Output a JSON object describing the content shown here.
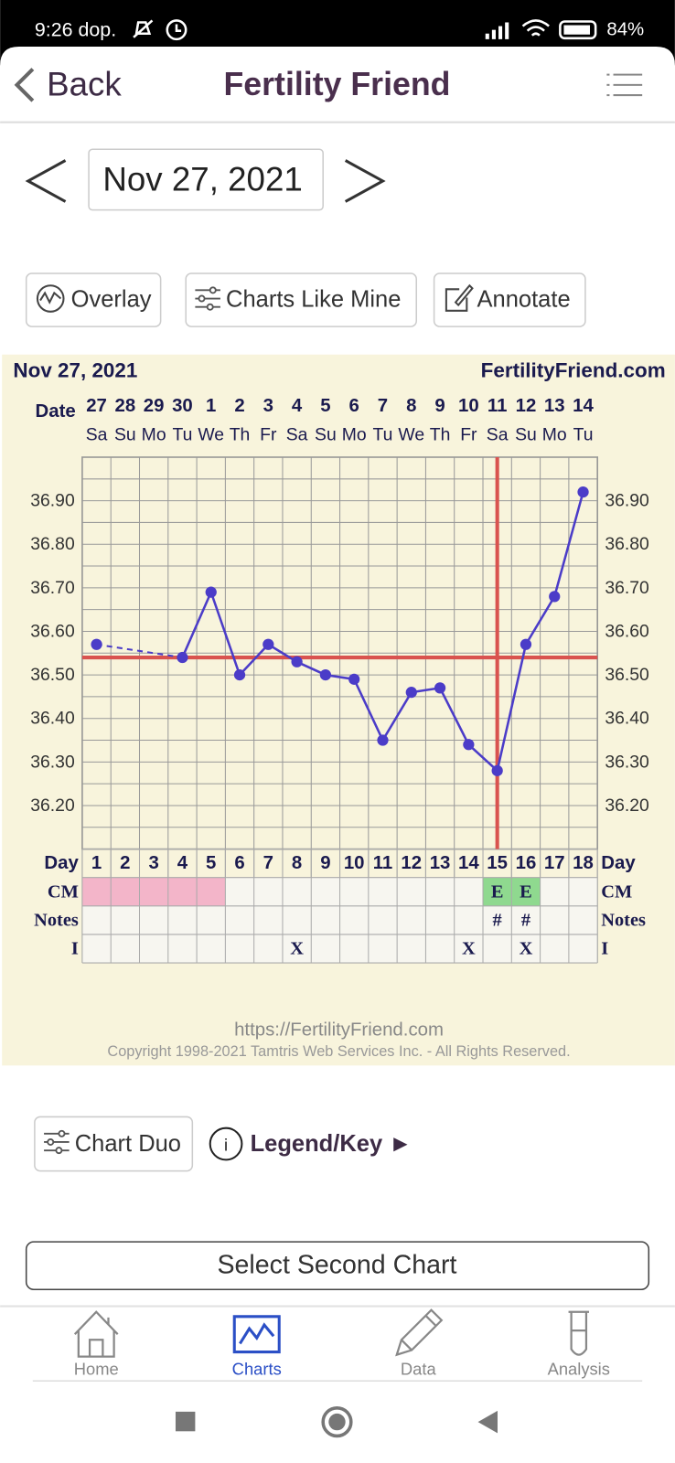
{
  "status_bar": {
    "time": "9:26 dop.",
    "battery": "84%"
  },
  "header": {
    "back": "Back",
    "title": "Fertility Friend"
  },
  "date_nav": {
    "date": "Nov 27, 2021"
  },
  "toolbar": {
    "buttons": [
      "Overlay",
      "Charts Like Mine",
      "Annotate"
    ]
  },
  "chart_data": {
    "type": "line",
    "title": "Nov 27, 2021",
    "site": "FertilityFriend.com",
    "date_label": "Date",
    "dates": [
      "27",
      "28",
      "29",
      "30",
      "1",
      "2",
      "3",
      "4",
      "5",
      "6",
      "7",
      "8",
      "9",
      "10",
      "11",
      "12",
      "13",
      "14"
    ],
    "weekdays": [
      "Sa",
      "Su",
      "Mo",
      "Tu",
      "We",
      "Th",
      "Fr",
      "Sa",
      "Su",
      "Mo",
      "Tu",
      "We",
      "Th",
      "Fr",
      "Sa",
      "Su",
      "Mo",
      "Tu"
    ],
    "values": [
      36.57,
      null,
      null,
      36.54,
      36.69,
      36.5,
      36.57,
      36.53,
      36.5,
      36.49,
      36.35,
      36.46,
      36.47,
      36.34,
      36.28,
      36.57,
      36.68,
      36.92
    ],
    "color": "#4b3cc8",
    "ylim": [
      36.1,
      37.0
    ],
    "yticks": [
      {
        "value": 36.2,
        "label": "36.20"
      },
      {
        "value": 36.3,
        "label": "36.30"
      },
      {
        "value": 36.4,
        "label": "36.40"
      },
      {
        "value": 36.5,
        "label": "36.50"
      },
      {
        "value": 36.6,
        "label": "36.60"
      },
      {
        "value": 36.7,
        "label": "36.70"
      },
      {
        "value": 36.8,
        "label": "36.80"
      },
      {
        "value": 36.9,
        "label": "36.90"
      }
    ],
    "grid": true,
    "coverline": 36.54,
    "marker_color": "#d9534f",
    "ovulation_day": 15,
    "day_label": "Day",
    "days": [
      1,
      2,
      3,
      4,
      5,
      6,
      7,
      8,
      9,
      10,
      11,
      12,
      13,
      14,
      15,
      16,
      17,
      18
    ],
    "rows": [
      {
        "label": "CM",
        "cells": [
          null,
          null,
          null,
          null,
          null,
          null,
          null,
          null,
          null,
          null,
          null,
          null,
          null,
          null,
          "E",
          "E",
          null,
          null
        ]
      },
      {
        "label": "Notes",
        "cells": [
          null,
          null,
          null,
          null,
          null,
          null,
          null,
          null,
          null,
          null,
          null,
          null,
          null,
          null,
          "#",
          "#",
          null,
          null
        ]
      },
      {
        "label": "I",
        "cells": [
          null,
          null,
          null,
          null,
          null,
          null,
          null,
          "X",
          null,
          null,
          null,
          null,
          null,
          "X",
          null,
          "X",
          null,
          null
        ]
      }
    ],
    "period_days": [
      1,
      2,
      3,
      4,
      5
    ],
    "period_color": "#f3b5c9",
    "fertile_days": [
      15,
      16
    ],
    "fertile_color": "#8fd98f"
  },
  "chart_footer": {
    "url": "https://FertilityFriend.com",
    "copyright": "Copyright 1998-2021 Tamtris Web Services Inc. - All Rights Reserved."
  },
  "controls": {
    "chart_duo": "Chart Duo",
    "legend": "Legend/Key ►",
    "select": "Select Second Chart"
  },
  "nav": {
    "items": [
      "Home",
      "Charts",
      "Data",
      "Analysis"
    ],
    "active": 1,
    "active_color": "#2b4fc6"
  }
}
